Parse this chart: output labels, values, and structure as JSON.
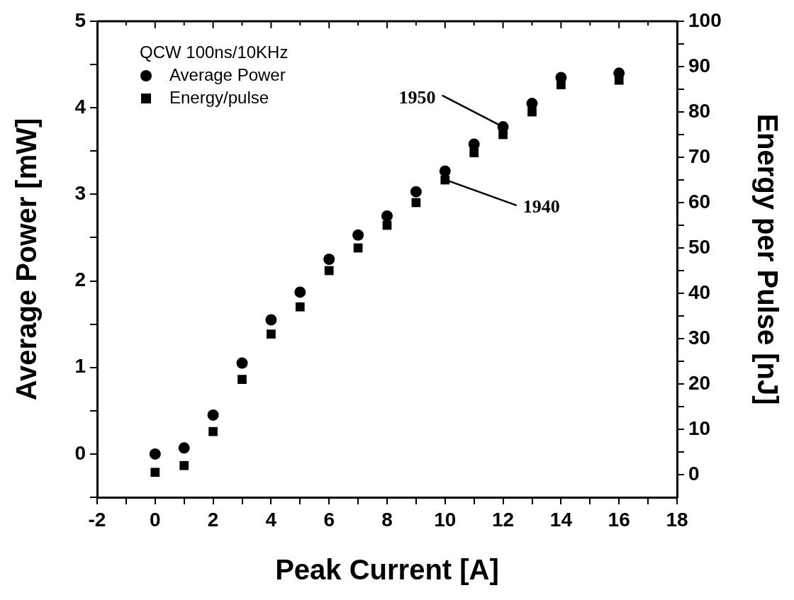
{
  "chart_data": {
    "type": "scatter",
    "xlabel": "Peak Current [A]",
    "ylabel": "Average Power [mW]",
    "y2label": "Energy per Pulse [nJ]",
    "legend_title": "QCW 100ns/10KHz",
    "legend": "top left",
    "grid": false,
    "x": [
      0,
      1,
      2,
      3,
      4,
      5,
      6,
      7,
      8,
      9,
      10,
      11,
      12,
      13,
      14,
      16
    ],
    "series": [
      {
        "name": "Average Power",
        "color": "#000000",
        "marker": "circle",
        "values": [
          0,
          0.07,
          0.45,
          1.05,
          1.55,
          1.87,
          2.25,
          2.53,
          2.75,
          3.03,
          3.27,
          3.58,
          3.78,
          4.05,
          4.35,
          4.4
        ]
      },
      {
        "name": "Energy/pulse",
        "color": "#000000",
        "marker": "square",
        "axis": "y2",
        "values": [
          0.5,
          2,
          9.5,
          21,
          31,
          37,
          45,
          50,
          55,
          60,
          65,
          71,
          75,
          80,
          86,
          87
        ]
      }
    ],
    "xlim": [
      -2,
      18
    ],
    "xticks": [
      -2,
      {
        "value": -1,
        "label": null
      },
      0,
      {
        "value": 1,
        "label": null
      },
      2,
      {
        "value": 3,
        "label": null
      },
      4,
      {
        "value": 5,
        "label": null
      },
      6,
      {
        "value": 7,
        "label": null
      },
      8,
      {
        "value": 9,
        "label": null
      },
      10,
      {
        "value": 11,
        "label": null
      },
      12,
      {
        "value": 13,
        "label": null
      },
      14,
      {
        "value": 15,
        "label": null
      },
      16,
      {
        "value": 17,
        "label": null
      },
      18
    ],
    "ylim": [
      -0.5,
      5
    ],
    "yticks": [
      {
        "value": -0.5,
        "label": null
      },
      0,
      {
        "value": 0.5,
        "label": null
      },
      1,
      {
        "value": 1.5,
        "label": null
      },
      2,
      {
        "value": 2.5,
        "label": null
      },
      3,
      {
        "value": 3.5,
        "label": null
      },
      4,
      {
        "value": 4.5,
        "label": null
      },
      5
    ],
    "y2lim": [
      -5,
      100
    ],
    "y2ticks": [
      0,
      {
        "value": 5,
        "label": null
      },
      10,
      {
        "value": 15,
        "label": null
      },
      20,
      {
        "value": 25,
        "label": null
      },
      30,
      {
        "value": 35,
        "label": null
      },
      40,
      {
        "value": 45,
        "label": null
      },
      50,
      {
        "value": 55,
        "label": null
      },
      60,
      {
        "value": 65,
        "label": null
      },
      70,
      {
        "value": 75,
        "label": null
      },
      80,
      {
        "value": 85,
        "label": null
      },
      90,
      {
        "value": 95,
        "label": null
      },
      100
    ],
    "annotations": [
      {
        "text": "1950",
        "x": 12,
        "y": 3.78
      },
      {
        "text": "1940",
        "x": 10,
        "y": 3.17
      }
    ]
  }
}
